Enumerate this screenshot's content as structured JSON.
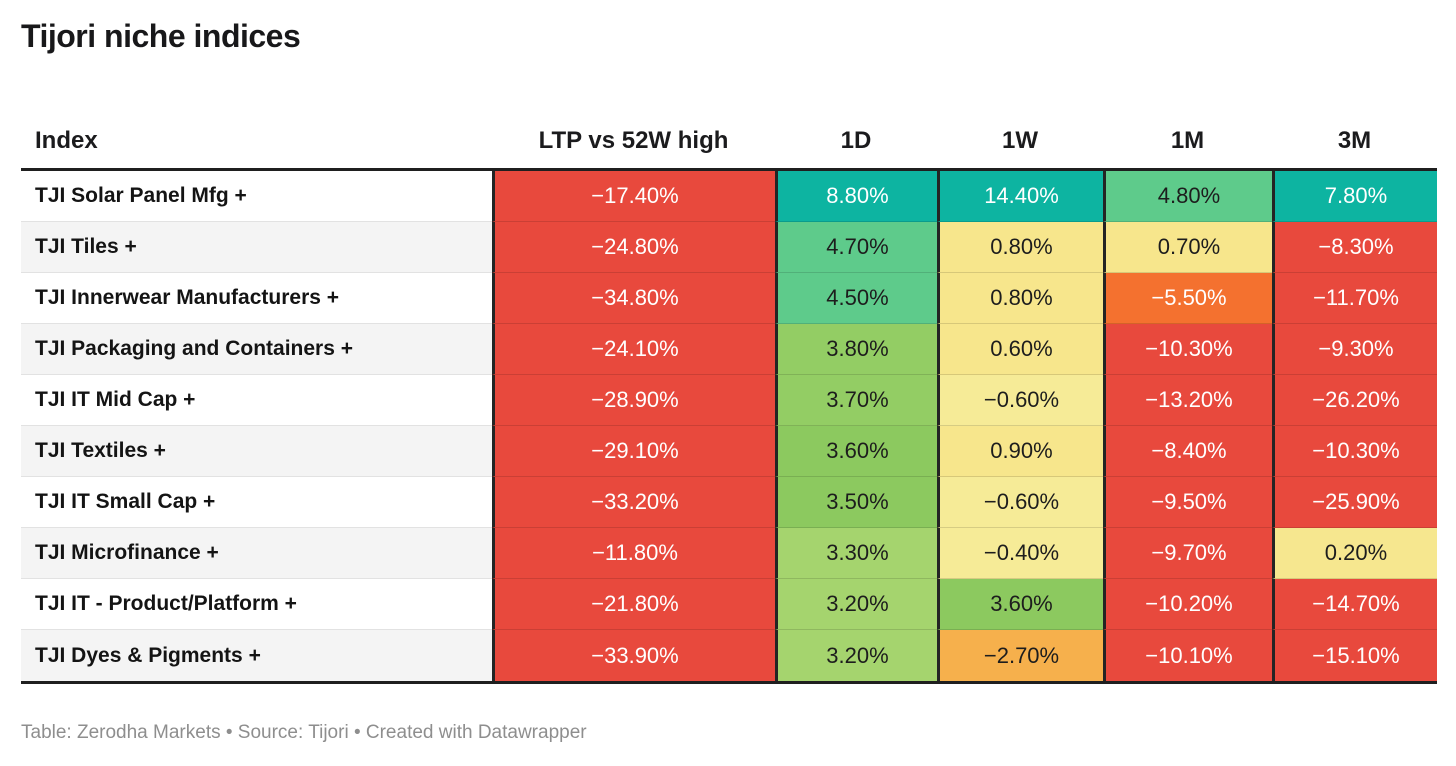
{
  "page": {
    "title": "Tijori niche indices",
    "footer": "Table: Zerodha Markets • Source: Tijori • Created with Datawrapper"
  },
  "chart_data": {
    "type": "table",
    "title": "Tijori niche indices",
    "columns": [
      "Index",
      "LTP vs 52W high",
      "1D",
      "1W",
      "1M",
      "3M"
    ],
    "rows": [
      [
        "TJI Solar Panel Mfg +",
        -17.4,
        8.8,
        14.4,
        4.8,
        7.8
      ],
      [
        "TJI Tiles +",
        -24.8,
        4.7,
        0.8,
        0.7,
        -8.3
      ],
      [
        "TJI Innerwear Manufacturers +",
        -34.8,
        4.5,
        0.8,
        -5.5,
        -11.7
      ],
      [
        "TJI Packaging and Containers +",
        -24.1,
        3.8,
        0.6,
        -10.3,
        -9.3
      ],
      [
        "TJI IT Mid Cap +",
        -28.9,
        3.7,
        -0.6,
        -13.2,
        -26.2
      ],
      [
        "TJI Textiles +",
        -29.1,
        3.6,
        0.9,
        -8.4,
        -10.3
      ],
      [
        "TJI IT Small Cap +",
        -33.2,
        3.5,
        -0.6,
        -9.5,
        -25.9
      ],
      [
        "TJI Microfinance +",
        -11.8,
        3.3,
        -0.4,
        -9.7,
        0.2
      ],
      [
        "TJI IT - Product/Platform +",
        -21.8,
        3.2,
        3.6,
        -10.2,
        -14.7
      ],
      [
        "TJI Dyes & Pigments +",
        -33.9,
        3.2,
        -2.7,
        -10.1,
        -15.1
      ]
    ],
    "units": "percent",
    "notes": "Table: Zerodha Markets • Source: Tijori • Created with Datawrapper",
    "legend_position": "none",
    "heatmap_colors": {
      "strong_positive_teal": "#0db4a1",
      "positive_green": "#5ecb8b",
      "mild_green": "#93cd64",
      "light_green": "#a5d46e",
      "neutral_yellow": "#f7e68c",
      "mild_negative_orange": "#f6b04c",
      "negative_orange": "#f4712f",
      "strong_negative_red": "#e8493d"
    }
  },
  "table": {
    "header": [
      "Index",
      "LTP vs 52W high",
      "1D",
      "1W",
      "1M",
      "3M"
    ],
    "rows": [
      {
        "index": "TJI Solar Panel Mfg +",
        "values": [
          {
            "text": "−17.40%",
            "bg": "#e8493d",
            "fg": "#ffffff"
          },
          {
            "text": "8.80%",
            "bg": "#0db4a1",
            "fg": "#ffffff"
          },
          {
            "text": "14.40%",
            "bg": "#0db4a1",
            "fg": "#ffffff"
          },
          {
            "text": "4.80%",
            "bg": "#5ecb8b",
            "fg": "#1d1d1d"
          },
          {
            "text": "7.80%",
            "bg": "#0db4a1",
            "fg": "#ffffff"
          }
        ]
      },
      {
        "index": "TJI Tiles +",
        "values": [
          {
            "text": "−24.80%",
            "bg": "#e8493d",
            "fg": "#ffffff"
          },
          {
            "text": "4.70%",
            "bg": "#5ecb8b",
            "fg": "#1d1d1d"
          },
          {
            "text": "0.80%",
            "bg": "#f7e68c",
            "fg": "#1d1d1d"
          },
          {
            "text": "0.70%",
            "bg": "#f7e68c",
            "fg": "#1d1d1d"
          },
          {
            "text": "−8.30%",
            "bg": "#e8493d",
            "fg": "#ffffff"
          }
        ]
      },
      {
        "index": "TJI Innerwear Manufacturers +",
        "values": [
          {
            "text": "−34.80%",
            "bg": "#e8493d",
            "fg": "#ffffff"
          },
          {
            "text": "4.50%",
            "bg": "#5ecb8b",
            "fg": "#1d1d1d"
          },
          {
            "text": "0.80%",
            "bg": "#f7e68c",
            "fg": "#1d1d1d"
          },
          {
            "text": "−5.50%",
            "bg": "#f4712f",
            "fg": "#ffffff"
          },
          {
            "text": "−11.70%",
            "bg": "#e8493d",
            "fg": "#ffffff"
          }
        ]
      },
      {
        "index": "TJI Packaging and Containers +",
        "values": [
          {
            "text": "−24.10%",
            "bg": "#e8493d",
            "fg": "#ffffff"
          },
          {
            "text": "3.80%",
            "bg": "#93cd64",
            "fg": "#1d1d1d"
          },
          {
            "text": "0.60%",
            "bg": "#f7e68c",
            "fg": "#1d1d1d"
          },
          {
            "text": "−10.30%",
            "bg": "#e8493d",
            "fg": "#ffffff"
          },
          {
            "text": "−9.30%",
            "bg": "#e8493d",
            "fg": "#ffffff"
          }
        ]
      },
      {
        "index": "TJI IT Mid Cap +",
        "values": [
          {
            "text": "−28.90%",
            "bg": "#e8493d",
            "fg": "#ffffff"
          },
          {
            "text": "3.70%",
            "bg": "#93cd64",
            "fg": "#1d1d1d"
          },
          {
            "text": "−0.60%",
            "bg": "#f6eb97",
            "fg": "#1d1d1d"
          },
          {
            "text": "−13.20%",
            "bg": "#e8493d",
            "fg": "#ffffff"
          },
          {
            "text": "−26.20%",
            "bg": "#e8493d",
            "fg": "#ffffff"
          }
        ]
      },
      {
        "index": "TJI Textiles +",
        "values": [
          {
            "text": "−29.10%",
            "bg": "#e8493d",
            "fg": "#ffffff"
          },
          {
            "text": "3.60%",
            "bg": "#8cc95f",
            "fg": "#1d1d1d"
          },
          {
            "text": "0.90%",
            "bg": "#f7e68c",
            "fg": "#1d1d1d"
          },
          {
            "text": "−8.40%",
            "bg": "#e8493d",
            "fg": "#ffffff"
          },
          {
            "text": "−10.30%",
            "bg": "#e8493d",
            "fg": "#ffffff"
          }
        ]
      },
      {
        "index": "TJI IT Small Cap +",
        "values": [
          {
            "text": "−33.20%",
            "bg": "#e8493d",
            "fg": "#ffffff"
          },
          {
            "text": "3.50%",
            "bg": "#8cc95f",
            "fg": "#1d1d1d"
          },
          {
            "text": "−0.60%",
            "bg": "#f6eb97",
            "fg": "#1d1d1d"
          },
          {
            "text": "−9.50%",
            "bg": "#e8493d",
            "fg": "#ffffff"
          },
          {
            "text": "−25.90%",
            "bg": "#e8493d",
            "fg": "#ffffff"
          }
        ]
      },
      {
        "index": "TJI Microfinance +",
        "values": [
          {
            "text": "−11.80%",
            "bg": "#e8493d",
            "fg": "#ffffff"
          },
          {
            "text": "3.30%",
            "bg": "#a5d46e",
            "fg": "#1d1d1d"
          },
          {
            "text": "−0.40%",
            "bg": "#f6eb97",
            "fg": "#1d1d1d"
          },
          {
            "text": "−9.70%",
            "bg": "#e8493d",
            "fg": "#ffffff"
          },
          {
            "text": "0.20%",
            "bg": "#f6e78f",
            "fg": "#1d1d1d"
          }
        ]
      },
      {
        "index": "TJI IT - Product/Platform +",
        "values": [
          {
            "text": "−21.80%",
            "bg": "#e8493d",
            "fg": "#ffffff"
          },
          {
            "text": "3.20%",
            "bg": "#a5d46e",
            "fg": "#1d1d1d"
          },
          {
            "text": "3.60%",
            "bg": "#8cc95f",
            "fg": "#1d1d1d"
          },
          {
            "text": "−10.20%",
            "bg": "#e8493d",
            "fg": "#ffffff"
          },
          {
            "text": "−14.70%",
            "bg": "#e8493d",
            "fg": "#ffffff"
          }
        ]
      },
      {
        "index": "TJI Dyes & Pigments +",
        "values": [
          {
            "text": "−33.90%",
            "bg": "#e8493d",
            "fg": "#ffffff"
          },
          {
            "text": "3.20%",
            "bg": "#a5d46e",
            "fg": "#1d1d1d"
          },
          {
            "text": "−2.70%",
            "bg": "#f6b04c",
            "fg": "#1d1d1d"
          },
          {
            "text": "−10.10%",
            "bg": "#e8493d",
            "fg": "#ffffff"
          },
          {
            "text": "−15.10%",
            "bg": "#e8493d",
            "fg": "#ffffff"
          }
        ]
      }
    ]
  }
}
